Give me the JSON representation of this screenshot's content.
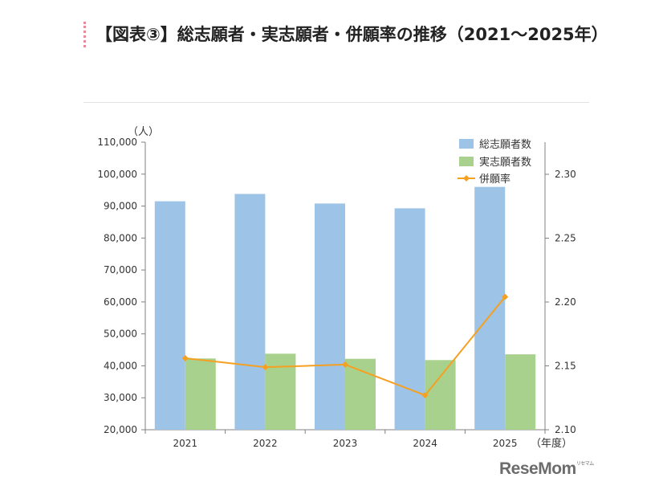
{
  "title": "【図表③】総志願者・実志願者・併願率の推移（2021～2025年）",
  "colors": {
    "bar_total": "#9dc3e6",
    "bar_actual": "#a9d18e",
    "line_rate": "#f5a020",
    "axis": "#808080",
    "text": "#333333"
  },
  "logo": {
    "text": "ReseMom",
    "small": "リセマム"
  },
  "chart_data": {
    "type": "bar",
    "categories": [
      "2021",
      "2022",
      "2023",
      "2024",
      "2025"
    ],
    "series": [
      {
        "name": "総志願者数",
        "type": "bar",
        "axis": "left",
        "values": [
          91500,
          93800,
          90800,
          89300,
          96000
        ]
      },
      {
        "name": "実志願者数",
        "type": "bar",
        "axis": "left",
        "values": [
          42300,
          43800,
          42200,
          41800,
          43600
        ]
      },
      {
        "name": "併願率",
        "type": "line",
        "axis": "right",
        "values": [
          2.156,
          2.149,
          2.151,
          2.127,
          2.204
        ]
      }
    ],
    "yleft": {
      "unit": "（人）",
      "min": 20000,
      "max": 110000,
      "step": 10000,
      "tick_labels": [
        "20,000",
        "30,000",
        "40,000",
        "50,000",
        "60,000",
        "70,000",
        "80,000",
        "90,000",
        "100,000",
        "110,000"
      ]
    },
    "yright": {
      "min": 2.1,
      "max": 2.3,
      "step": 0.05,
      "tick_labels": [
        "2.10",
        "2.15",
        "2.20",
        "2.25",
        "2.30"
      ]
    },
    "xunit": "（年度）",
    "legend_position": "top-right",
    "grid": false
  }
}
